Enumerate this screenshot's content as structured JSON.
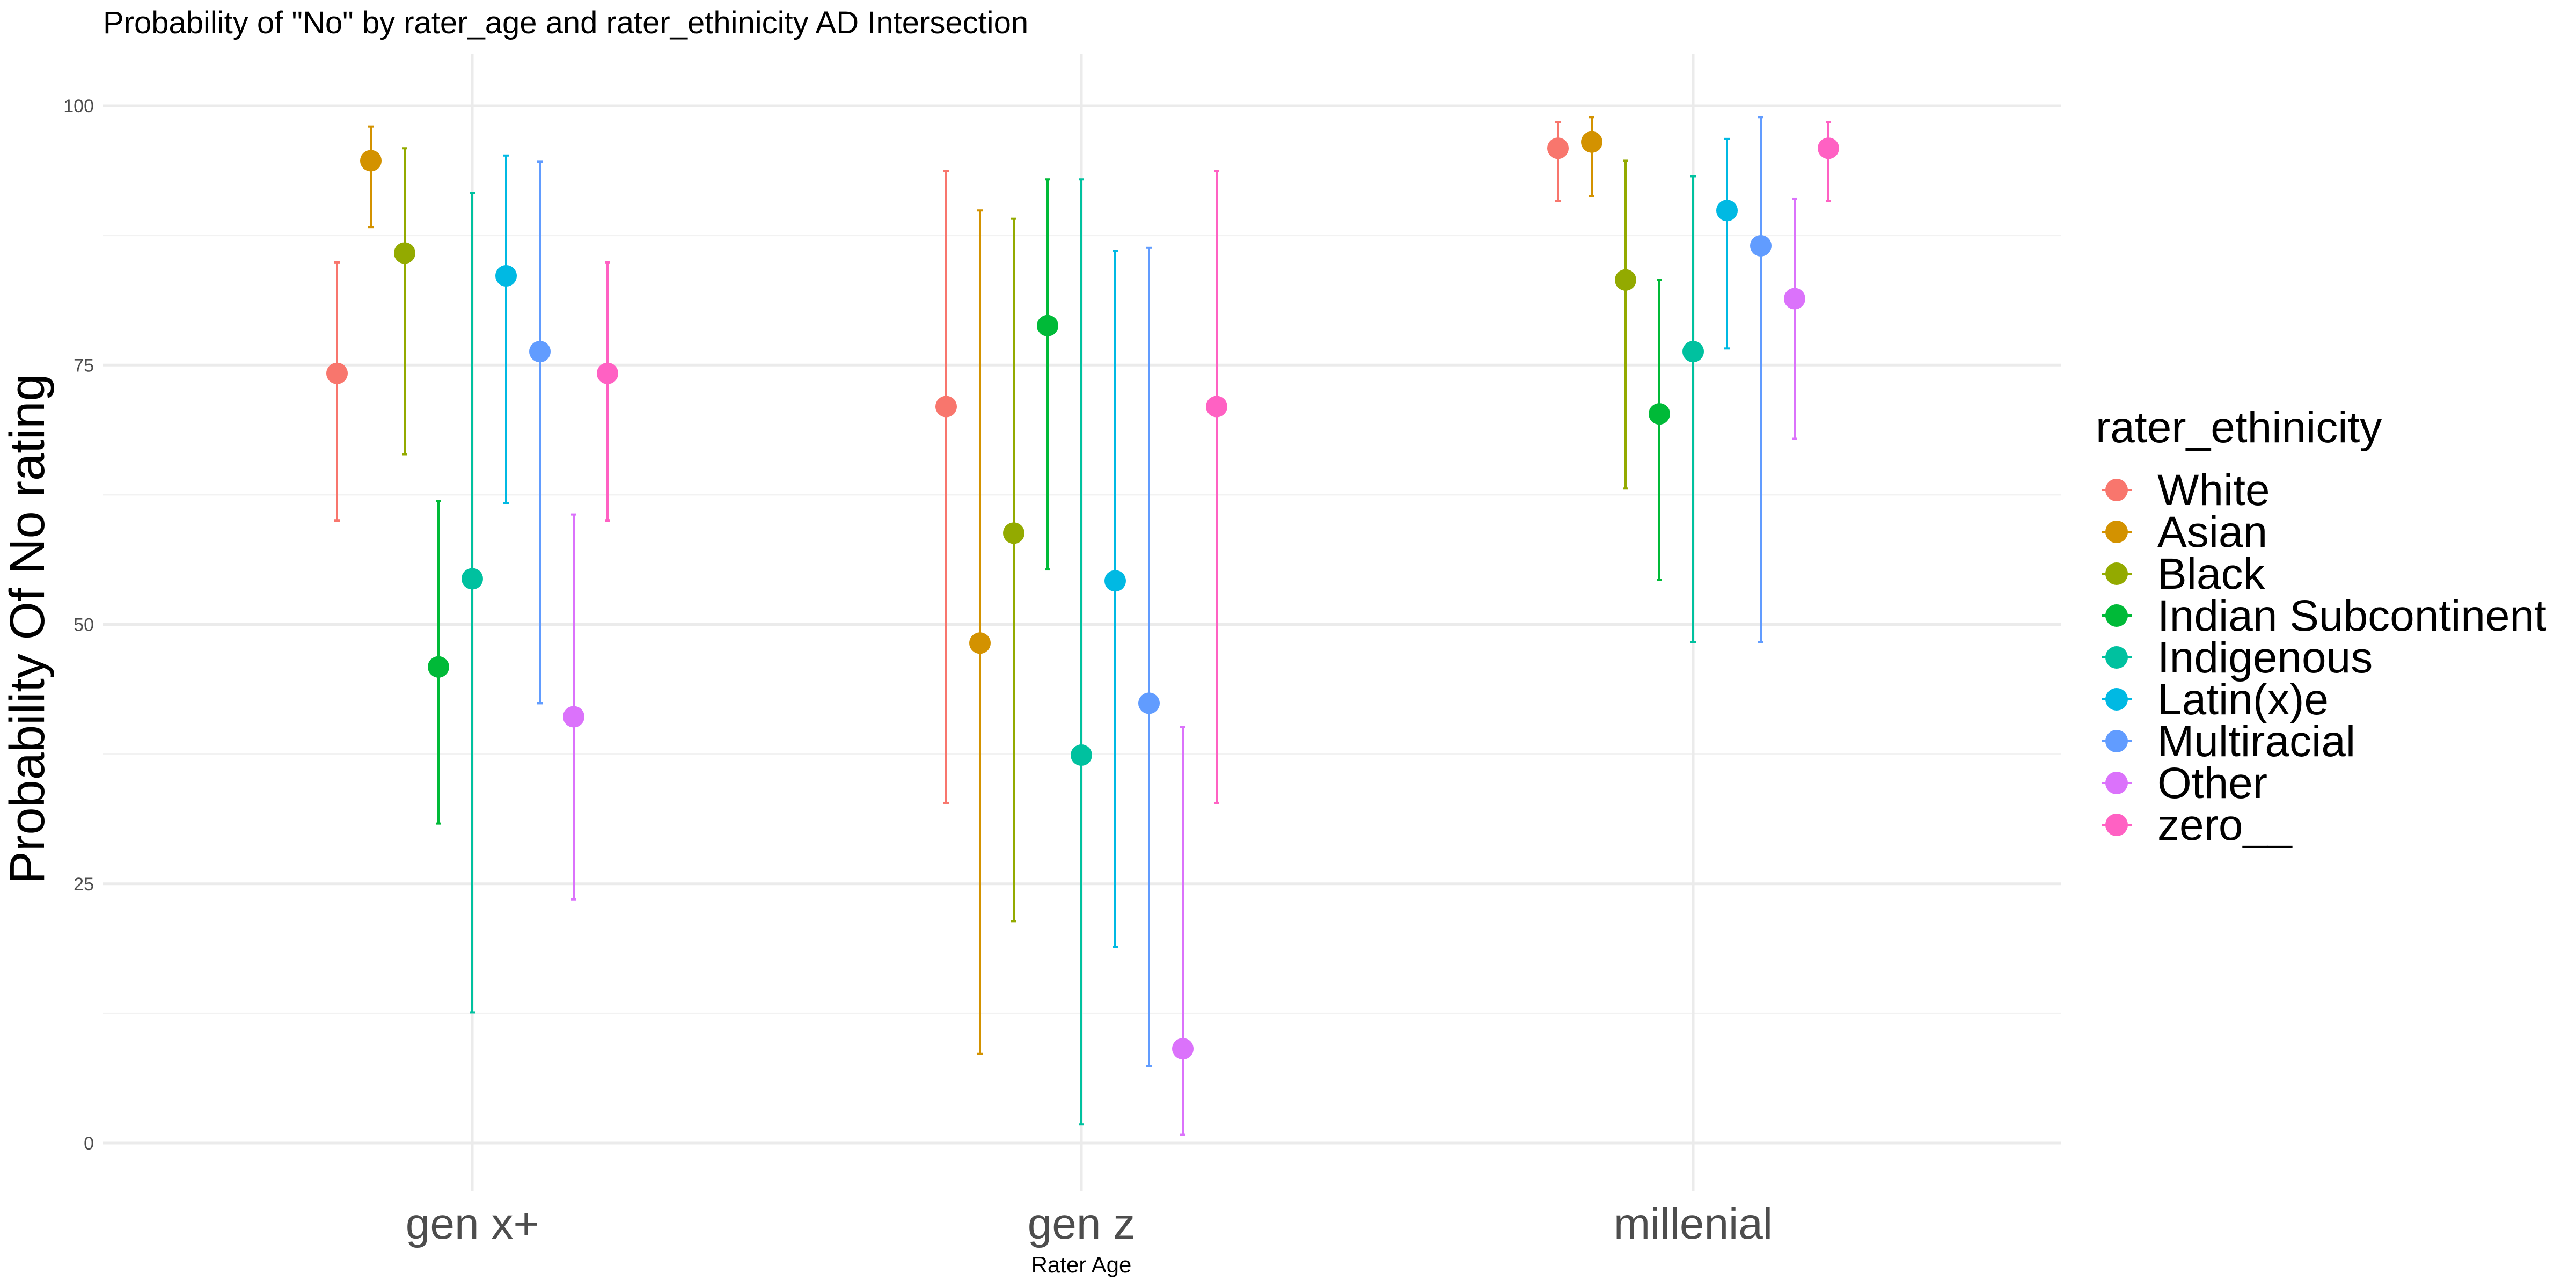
{
  "chart_data": {
    "type": "scatter",
    "subtype": "point-range (dodged points with error bars)",
    "title": "Probability of \"No\" by rater_age and  rater_ethinicity  AD Intersection",
    "xlabel": "Rater Age",
    "ylabel": "Probability Of No rating",
    "categories": [
      "gen x+",
      "gen z",
      "millenial"
    ],
    "ylim": [
      0,
      100
    ],
    "yticks": [
      0,
      25,
      50,
      75,
      100
    ],
    "grid": true,
    "legend": {
      "title": "rater_ethinicity",
      "position": "right"
    },
    "series": [
      {
        "name": "White",
        "color": "#F8766D",
        "values": [
          74.2,
          71.0,
          95.9
        ],
        "lower": [
          60.0,
          32.8,
          90.8
        ],
        "upper": [
          84.9,
          93.7,
          98.4
        ]
      },
      {
        "name": "Asian",
        "color": "#D39200",
        "values": [
          94.7,
          48.2,
          96.5
        ],
        "lower": [
          88.3,
          8.6,
          91.3
        ],
        "upper": [
          98.0,
          89.9,
          98.9
        ]
      },
      {
        "name": "Black",
        "color": "#93AA00",
        "values": [
          85.8,
          58.8,
          83.2
        ],
        "lower": [
          66.4,
          21.4,
          63.1
        ],
        "upper": [
          95.9,
          89.1,
          94.7
        ]
      },
      {
        "name": "Indian Subcontinent",
        "color": "#00BA38",
        "values": [
          45.9,
          78.8,
          70.3
        ],
        "lower": [
          30.8,
          55.3,
          54.3
        ],
        "upper": [
          61.9,
          92.9,
          83.2
        ]
      },
      {
        "name": "Indigenous",
        "color": "#00C19F",
        "values": [
          54.4,
          37.4,
          76.3
        ],
        "lower": [
          12.6,
          1.8,
          48.3
        ],
        "upper": [
          91.6,
          92.9,
          93.2
        ]
      },
      {
        "name": "Latin(x)e",
        "color": "#00B9E3",
        "values": [
          83.6,
          54.2,
          89.9
        ],
        "lower": [
          61.7,
          18.9,
          76.6
        ],
        "upper": [
          95.2,
          86.0,
          96.8
        ]
      },
      {
        "name": "Multiracial",
        "color": "#619CFF",
        "values": [
          76.3,
          42.4,
          86.5
        ],
        "lower": [
          42.4,
          7.4,
          48.3
        ],
        "upper": [
          94.6,
          86.3,
          98.9
        ]
      },
      {
        "name": "Other",
        "color": "#DB72FB",
        "values": [
          41.1,
          9.1,
          81.4
        ],
        "lower": [
          23.5,
          0.8,
          67.9
        ],
        "upper": [
          60.6,
          40.1,
          91.0
        ]
      },
      {
        "name": "zero__",
        "color": "#FF61C3",
        "values": [
          74.2,
          71.0,
          95.9
        ],
        "lower": [
          60.0,
          32.8,
          90.8
        ],
        "upper": [
          84.9,
          93.7,
          98.4
        ]
      }
    ]
  }
}
